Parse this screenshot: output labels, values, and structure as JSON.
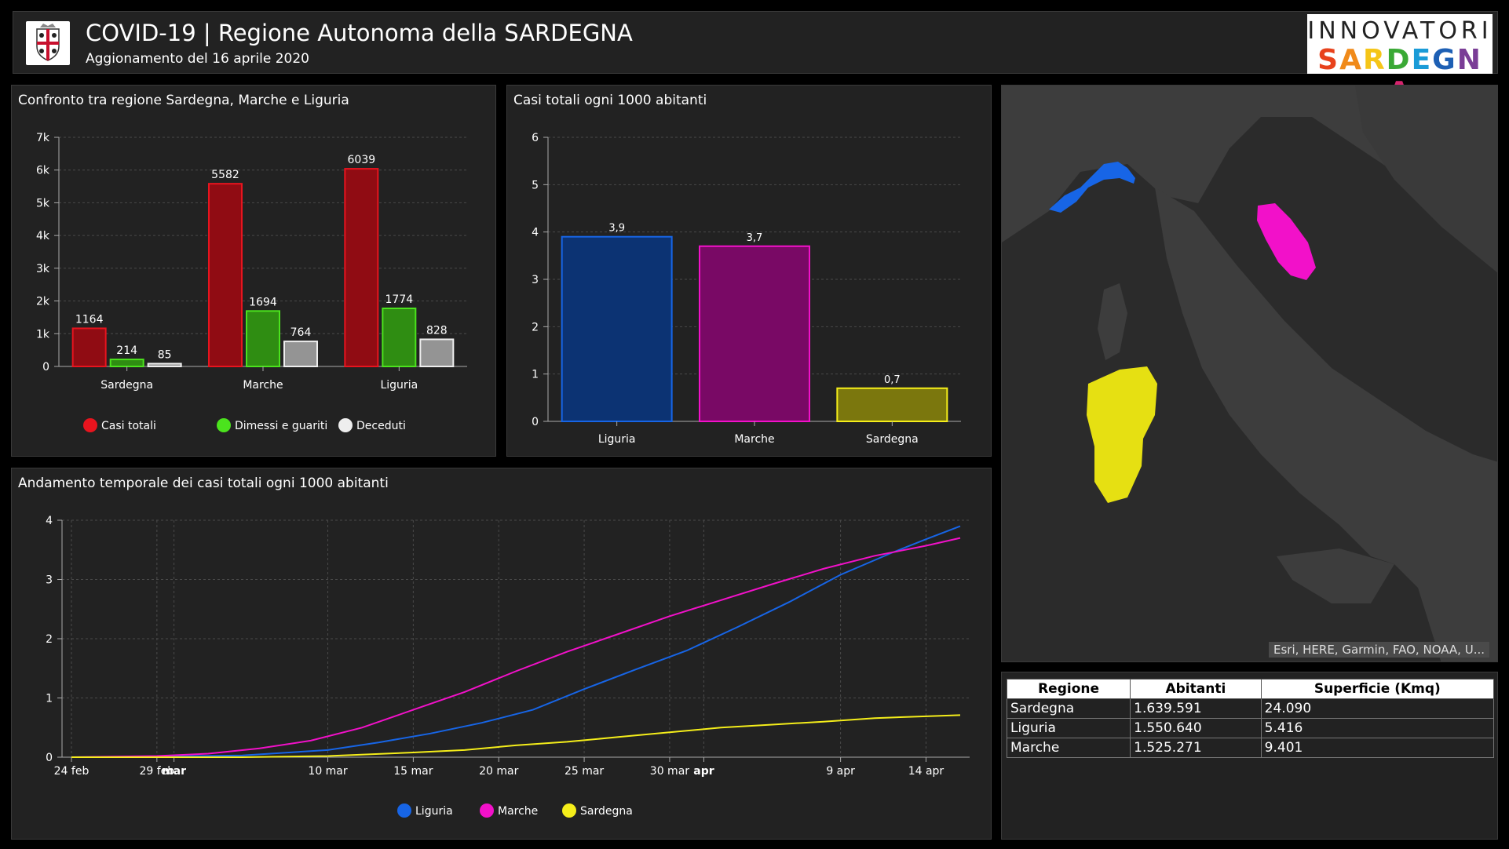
{
  "header": {
    "title": "COVID-19 | Regione Autonoma della SARDEGNA",
    "subtitle": "Aggionamento del 16 aprile 2020",
    "brand_top": "INNOVATORI",
    "brand_bottom": "SARDEGNA"
  },
  "colors": {
    "casi": "#e8141e",
    "guariti": "#4be31d",
    "deceduti": "#eeeeee",
    "liguria": "#1765e6",
    "marche": "#f211c9",
    "sardegna": "#f5ee1a"
  },
  "chart_data": [
    {
      "type": "bar",
      "title": "Confronto tra regione Sardegna, Marche e Liguria",
      "categories": [
        "Sardegna",
        "Marche",
        "Liguria"
      ],
      "series": [
        {
          "name": "Casi totali",
          "values": [
            1164,
            5582,
            6039
          ]
        },
        {
          "name": "Dimessi e guariti",
          "values": [
            214,
            1694,
            1774
          ]
        },
        {
          "name": "Deceduti",
          "values": [
            85,
            764,
            828
          ]
        }
      ],
      "data_labels": [
        [
          "1164",
          "214",
          "85"
        ],
        [
          "5582",
          "1694",
          "764"
        ],
        [
          "6039",
          "1774",
          "828"
        ]
      ],
      "ylim": [
        0,
        7000
      ],
      "yticks": [
        0,
        1000,
        2000,
        3000,
        4000,
        5000,
        6000,
        7000
      ],
      "ytick_labels": [
        "0",
        "1k",
        "2k",
        "3k",
        "4k",
        "5k",
        "6k",
        "7k"
      ],
      "grid": true,
      "legend": "bottom"
    },
    {
      "type": "bar",
      "title": "Casi totali ogni 1000 abitanti",
      "categories": [
        "Liguria",
        "Marche",
        "Sardegna"
      ],
      "values": [
        3.9,
        3.7,
        0.7
      ],
      "data_labels": [
        "3,9",
        "3,7",
        "0,7"
      ],
      "ylim": [
        0,
        6
      ],
      "yticks": [
        0,
        1,
        2,
        3,
        4,
        5,
        6
      ],
      "ytick_labels": [
        "0",
        "1",
        "2",
        "3",
        "4",
        "5",
        "6"
      ],
      "grid": true
    },
    {
      "type": "line",
      "title": "Andamento temporale dei casi totali ogni 1000 abitanti",
      "x_range": [
        "2020-02-24",
        "2020-04-16"
      ],
      "xticks": [
        {
          "date": "2020-02-24",
          "label": "24 feb",
          "bold": false
        },
        {
          "date": "2020-02-29",
          "label": "29 feb",
          "bold": false
        },
        {
          "date": "2020-03-01",
          "label": "mar",
          "bold": true
        },
        {
          "date": "2020-03-10",
          "label": "10 mar",
          "bold": false
        },
        {
          "date": "2020-03-15",
          "label": "15 mar",
          "bold": false
        },
        {
          "date": "2020-03-20",
          "label": "20 mar",
          "bold": false
        },
        {
          "date": "2020-03-25",
          "label": "25 mar",
          "bold": false
        },
        {
          "date": "2020-03-30",
          "label": "30 mar",
          "bold": false
        },
        {
          "date": "2020-04-01",
          "label": "apr",
          "bold": true
        },
        {
          "date": "2020-04-09",
          "label": "9 apr",
          "bold": false
        },
        {
          "date": "2020-04-14",
          "label": "14 apr",
          "bold": false
        }
      ],
      "ylim": [
        0,
        4
      ],
      "yticks": [
        0,
        1,
        2,
        3,
        4
      ],
      "ytick_labels": [
        "0",
        "1",
        "2",
        "3",
        "4"
      ],
      "grid": true,
      "legend": "bottom",
      "series": [
        {
          "name": "Liguria",
          "points": [
            [
              "2020-02-24",
              0
            ],
            [
              "2020-02-29",
              0.01
            ],
            [
              "2020-03-05",
              0.03
            ],
            [
              "2020-03-10",
              0.12
            ],
            [
              "2020-03-13",
              0.25
            ],
            [
              "2020-03-16",
              0.4
            ],
            [
              "2020-03-19",
              0.58
            ],
            [
              "2020-03-22",
              0.8
            ],
            [
              "2020-03-25",
              1.15
            ],
            [
              "2020-03-28",
              1.48
            ],
            [
              "2020-03-31",
              1.8
            ],
            [
              "2020-04-03",
              2.2
            ],
            [
              "2020-04-06",
              2.62
            ],
            [
              "2020-04-09",
              3.08
            ],
            [
              "2020-04-12",
              3.45
            ],
            [
              "2020-04-14",
              3.68
            ],
            [
              "2020-04-16",
              3.9
            ]
          ]
        },
        {
          "name": "Marche",
          "points": [
            [
              "2020-02-24",
              0
            ],
            [
              "2020-02-29",
              0.02
            ],
            [
              "2020-03-03",
              0.06
            ],
            [
              "2020-03-06",
              0.15
            ],
            [
              "2020-03-09",
              0.28
            ],
            [
              "2020-03-12",
              0.5
            ],
            [
              "2020-03-15",
              0.8
            ],
            [
              "2020-03-18",
              1.1
            ],
            [
              "2020-03-21",
              1.45
            ],
            [
              "2020-03-24",
              1.78
            ],
            [
              "2020-03-27",
              2.08
            ],
            [
              "2020-03-30",
              2.38
            ],
            [
              "2020-04-02",
              2.65
            ],
            [
              "2020-04-05",
              2.92
            ],
            [
              "2020-04-08",
              3.18
            ],
            [
              "2020-04-11",
              3.4
            ],
            [
              "2020-04-14",
              3.57
            ],
            [
              "2020-04-16",
              3.7
            ]
          ]
        },
        {
          "name": "Sardegna",
          "points": [
            [
              "2020-02-24",
              0
            ],
            [
              "2020-03-05",
              0.0
            ],
            [
              "2020-03-10",
              0.02
            ],
            [
              "2020-03-15",
              0.08
            ],
            [
              "2020-03-18",
              0.12
            ],
            [
              "2020-03-21",
              0.2
            ],
            [
              "2020-03-24",
              0.26
            ],
            [
              "2020-03-27",
              0.34
            ],
            [
              "2020-03-30",
              0.42
            ],
            [
              "2020-04-02",
              0.5
            ],
            [
              "2020-04-05",
              0.55
            ],
            [
              "2020-04-08",
              0.6
            ],
            [
              "2020-04-11",
              0.66
            ],
            [
              "2020-04-14",
              0.69
            ],
            [
              "2020-04-16",
              0.71
            ]
          ]
        }
      ]
    }
  ],
  "map": {
    "attribution": "Esri, HERE, Garmin, FAO, NOAA, U...",
    "regions": [
      "liguria",
      "marche",
      "sardegna"
    ]
  },
  "table": {
    "headers": [
      "Regione",
      "Abitanti",
      "Superficie (Kmq)"
    ],
    "rows": [
      [
        "Sardegna",
        "1.639.591",
        "24.090"
      ],
      [
        "Liguria",
        "1.550.640",
        "5.416"
      ],
      [
        "Marche",
        "1.525.271",
        "9.401"
      ]
    ]
  }
}
